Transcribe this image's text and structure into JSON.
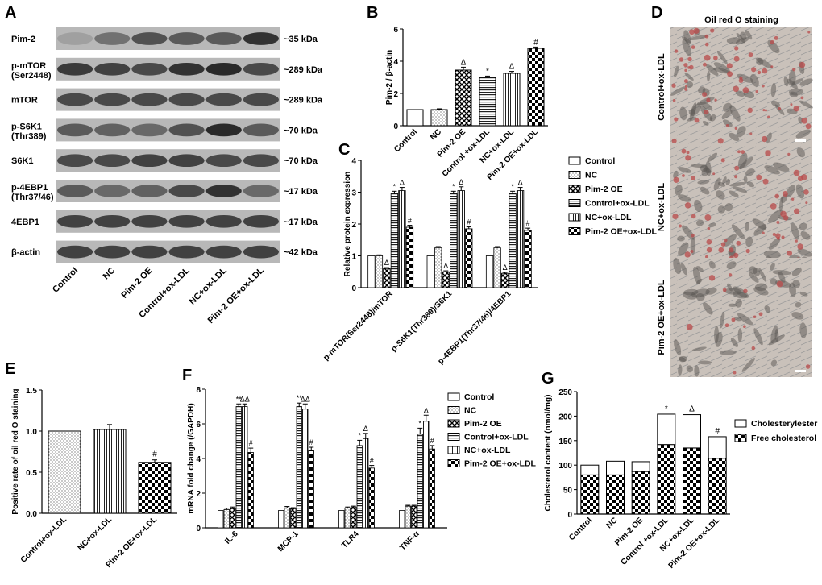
{
  "colors": {
    "text": "#000000",
    "blot_bg": "#b8b8b8",
    "band": "#1a1a1a",
    "micro_red": "#b84a4a",
    "micro_bg": "#d8cfc7",
    "micro_gray": "#8a8a8a"
  },
  "panels": {
    "A": {
      "letter": "A",
      "rows": [
        {
          "label": "Pim-2",
          "size": "~35 kDa",
          "intensity": [
            0.15,
            0.45,
            0.65,
            0.6,
            0.6,
            0.85
          ]
        },
        {
          "label": "p-mTOR\n(Ser2448)",
          "size": "~289 kDa",
          "intensity": [
            0.8,
            0.75,
            0.7,
            0.85,
            0.9,
            0.7
          ]
        },
        {
          "label": "mTOR",
          "size": "~289 kDa",
          "intensity": [
            0.7,
            0.7,
            0.7,
            0.7,
            0.7,
            0.7
          ]
        },
        {
          "label": "p-S6K1\n(Thr389)",
          "size": "~70 kDa",
          "intensity": [
            0.6,
            0.55,
            0.5,
            0.65,
            0.9,
            0.6
          ]
        },
        {
          "label": "S6K1",
          "size": "~70 kDa",
          "intensity": [
            0.7,
            0.7,
            0.75,
            0.75,
            0.7,
            0.7
          ]
        },
        {
          "label": "p-4EBP1\n(Thr37/46)",
          "size": "~17 kDa",
          "intensity": [
            0.6,
            0.5,
            0.55,
            0.7,
            0.85,
            0.5
          ]
        },
        {
          "label": "4EBP1",
          "size": "~17 kDa",
          "intensity": [
            0.75,
            0.75,
            0.75,
            0.75,
            0.75,
            0.75
          ]
        },
        {
          "label": "β-actin",
          "size": "~42 kDa",
          "intensity": [
            0.75,
            0.75,
            0.75,
            0.75,
            0.75,
            0.75
          ]
        }
      ],
      "lanes": [
        "Control",
        "NC",
        "Pim-2 OE",
        "Control+ox-LDL",
        "NC+ox-LDL",
        "Pim-2 OE+ox-LDL"
      ]
    },
    "D": {
      "letter": "D",
      "title": "Oil red O staining",
      "images": [
        {
          "label": "Control+ox-LDL",
          "red_density": 0.7
        },
        {
          "label": "NC+ox-LDL",
          "red_density": 0.65
        },
        {
          "label": "Pim-2 OE+ox-LDL",
          "red_density": 0.15
        }
      ]
    }
  },
  "chart_data": [
    {
      "id": "B",
      "letter": "B",
      "type": "bar",
      "ylabel": "Pim-2 / β-actin",
      "ylim": [
        0,
        6
      ],
      "yticks": [
        0,
        2,
        4,
        6
      ],
      "categories": [
        "Control",
        "NC",
        "Pim-2 OE",
        "Control +ox-LDL",
        "NC+ox-LDL",
        "Pim-2 OE+ox-LDL"
      ],
      "values": [
        1.0,
        1.0,
        3.45,
        3.0,
        3.25,
        4.8
      ],
      "errors": [
        0,
        0.05,
        0.18,
        0.08,
        0.12,
        0.08
      ],
      "annotations": [
        "",
        "",
        "Δ",
        "*",
        "Δ",
        "#"
      ]
    },
    {
      "id": "C",
      "letter": "C",
      "type": "bar",
      "ylabel": "Relative protein expression",
      "ylim": [
        0,
        4
      ],
      "yticks": [
        0,
        1,
        2,
        3,
        4
      ],
      "categories": [
        "p-mTOR(Ser2448)/mTOR",
        "p-S6K1(Thr389)/S6K1",
        "p-4EBP1(Thr37/46)/4EBP1"
      ],
      "series": [
        {
          "name": "Control",
          "values": [
            1.0,
            1.0,
            1.0
          ],
          "errors": [
            0,
            0,
            0
          ],
          "annotations": [
            "",
            "",
            ""
          ]
        },
        {
          "name": "NC",
          "values": [
            1.0,
            1.25,
            1.25
          ],
          "errors": [
            0.03,
            0.04,
            0.04
          ],
          "annotations": [
            "",
            "",
            ""
          ]
        },
        {
          "name": "Pim-2 OE",
          "values": [
            0.6,
            0.5,
            0.45
          ],
          "errors": [
            0.03,
            0.03,
            0.03
          ],
          "annotations": [
            "Δ",
            "Δ",
            "Δ"
          ]
        },
        {
          "name": "Control+ox-LDL",
          "values": [
            2.95,
            2.95,
            2.95
          ],
          "errors": [
            0.08,
            0.08,
            0.08
          ],
          "annotations": [
            "*",
            "*",
            "*"
          ]
        },
        {
          "name": "NC+ox-LDL",
          "values": [
            3.05,
            3.05,
            3.05
          ],
          "errors": [
            0.1,
            0.12,
            0.1
          ],
          "annotations": [
            "Δ",
            "Δ",
            "Δ"
          ]
        },
        {
          "name": "Pim-2 OE+ox-LDL",
          "values": [
            1.9,
            1.85,
            1.8
          ],
          "errors": [
            0.06,
            0.06,
            0.07
          ],
          "annotations": [
            "#",
            "#",
            "#"
          ]
        }
      ],
      "legend": "right"
    },
    {
      "id": "E",
      "letter": "E",
      "type": "bar",
      "ylabel": "Positive rate of oil red O staining",
      "ylim": [
        0,
        1.5
      ],
      "yticks": [
        "0.0",
        "0.5",
        "1.0",
        "1.5"
      ],
      "categories": [
        "Control+ox-LDL",
        "NC+ox-LDL",
        "Pim-2 OE+ox-LDL"
      ],
      "values": [
        1.0,
        1.02,
        0.62
      ],
      "errors": [
        0,
        0.06,
        0.03
      ],
      "annotations": [
        "",
        "",
        "#"
      ]
    },
    {
      "id": "F",
      "letter": "F",
      "type": "bar",
      "ylabel": "mRNA fold change (/GAPDH)",
      "ylim": [
        0,
        8
      ],
      "yticks": [
        0,
        2,
        4,
        6,
        8
      ],
      "categories": [
        "IL-6",
        "MCP-1",
        "TLR4",
        "TNF-α"
      ],
      "series": [
        {
          "name": "Control",
          "values": [
            1.0,
            1.0,
            1.0,
            1.0
          ],
          "errors": [
            0,
            0,
            0,
            0
          ],
          "annotations": [
            "",
            "",
            "",
            ""
          ]
        },
        {
          "name": "NC",
          "values": [
            1.05,
            1.15,
            1.15,
            1.25
          ],
          "errors": [
            0.08,
            0.08,
            0.05,
            0.05
          ],
          "annotations": [
            "",
            "",
            "",
            ""
          ]
        },
        {
          "name": "Pim-2 OE",
          "values": [
            1.1,
            1.1,
            1.2,
            1.25
          ],
          "errors": [
            0.1,
            0.06,
            0.05,
            0.05
          ],
          "annotations": [
            "",
            "",
            "",
            ""
          ]
        },
        {
          "name": "Control+ox-LDL",
          "values": [
            7.0,
            7.0,
            4.75,
            5.4
          ],
          "errors": [
            0.15,
            0.2,
            0.3,
            0.35
          ],
          "annotations": [
            "**",
            "**",
            "*",
            "*"
          ]
        },
        {
          "name": "NC+ox-LDL",
          "values": [
            7.0,
            6.85,
            5.15,
            6.15
          ],
          "errors": [
            0.15,
            0.3,
            0.3,
            0.35
          ],
          "annotations": [
            "ΔΔ",
            "ΔΔ",
            "Δ",
            "Δ"
          ]
        },
        {
          "name": "Pim-2 OE+ox-LDL",
          "values": [
            4.35,
            4.45,
            3.45,
            4.55
          ],
          "errors": [
            0.25,
            0.2,
            0.15,
            0.2
          ],
          "annotations": [
            "#",
            "#",
            "#",
            "#"
          ]
        }
      ],
      "legend": "right"
    },
    {
      "id": "G",
      "letter": "G",
      "type": "bar",
      "ylabel": "Cholesterol content (nmol/mg)",
      "ylim": [
        0,
        250
      ],
      "yticks": [
        0,
        50,
        100,
        150,
        200,
        250
      ],
      "stacked": true,
      "categories": [
        "Control",
        "NC",
        "Pim-2 OE",
        "Control +ox-LDL",
        "NC+ox-LDL",
        "Pim-2 OE+ox-LDL"
      ],
      "series": [
        {
          "name": "Free cholesterol",
          "values": [
            80,
            80,
            87,
            142,
            135,
            114
          ]
        },
        {
          "name": "Cholesterylester",
          "values": [
            20,
            28,
            20,
            62,
            68,
            44
          ]
        }
      ],
      "annotations": [
        "",
        "",
        "",
        "*",
        "Δ",
        "#"
      ],
      "legend_order": [
        "Cholesterylester",
        "Free cholesterol"
      ],
      "legend": "top-right"
    }
  ]
}
